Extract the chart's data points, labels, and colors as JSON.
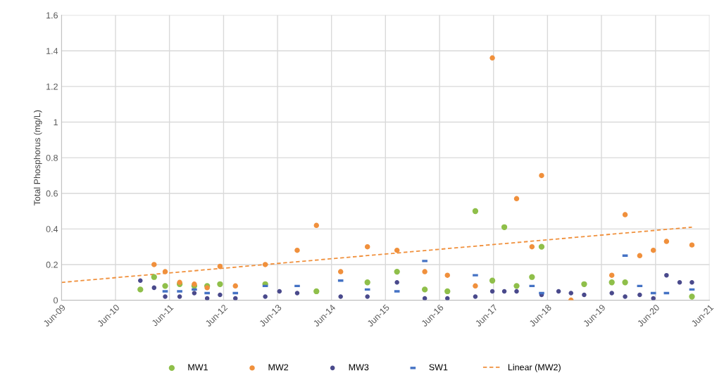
{
  "chart_data": {
    "type": "scatter",
    "ylabel": "Total Phosphorus (mg/L)",
    "xlim": [
      "2009-06-01",
      "2021-06-01"
    ],
    "xticks": [
      {
        "value": "2009-06-01",
        "label": "Jun-09"
      },
      {
        "value": "2010-06-01",
        "label": "Jun-10"
      },
      {
        "value": "2011-06-01",
        "label": "Jun-11"
      },
      {
        "value": "2012-06-01",
        "label": "Jun-12"
      },
      {
        "value": "2013-06-01",
        "label": "Jun-13"
      },
      {
        "value": "2014-06-01",
        "label": "Jun-14"
      },
      {
        "value": "2015-06-01",
        "label": "Jun-15"
      },
      {
        "value": "2016-06-01",
        "label": "Jun-16"
      },
      {
        "value": "2017-06-01",
        "label": "Jun-17"
      },
      {
        "value": "2018-06-01",
        "label": "Jun-18"
      },
      {
        "value": "2019-06-01",
        "label": "Jun-19"
      },
      {
        "value": "2020-06-01",
        "label": "Jun-20"
      },
      {
        "value": "2021-06-01",
        "label": "Jun-21"
      }
    ],
    "ylim": [
      0,
      1.6
    ],
    "yticks": [
      0,
      0.2,
      0.4,
      0.6,
      0.8,
      1,
      1.2,
      1.4,
      1.6
    ],
    "grid": true,
    "legend": "bottom",
    "series": [
      {
        "name": "MW1",
        "type": "scatter",
        "marker": "circle",
        "color": "#8fbf4a",
        "x": [
          "2010-11-16",
          "2011-02-17",
          "2011-05-03",
          "2011-08-09",
          "2011-11-16",
          "2012-02-11",
          "2012-05-08",
          "2013-03-10",
          "2014-02-19",
          "2015-01-30",
          "2015-08-18",
          "2016-02-22",
          "2016-07-24",
          "2017-01-29",
          "2017-05-24",
          "2017-08-13",
          "2017-11-04",
          "2018-02-16",
          "2018-04-22",
          "2019-02-04",
          "2019-08-10",
          "2019-11-08",
          "2021-02-02"
        ],
        "values": [
          0.06,
          0.13,
          0.08,
          0.09,
          0.08,
          0.08,
          0.09,
          0.09,
          0.05,
          0.1,
          0.16,
          0.06,
          0.05,
          0.5,
          0.11,
          0.41,
          0.08,
          0.13,
          0.3,
          0.09,
          0.1,
          0.1,
          0.02
        ]
      },
      {
        "name": "MW2",
        "type": "scatter",
        "marker": "circle",
        "color": "#f0903c",
        "x": [
          "2011-02-17",
          "2011-05-03",
          "2011-08-09",
          "2011-11-16",
          "2012-02-11",
          "2012-05-08",
          "2012-08-20",
          "2013-03-10",
          "2013-10-12",
          "2014-02-19",
          "2014-08-02",
          "2015-01-30",
          "2015-08-18",
          "2016-02-22",
          "2016-07-24",
          "2017-01-29",
          "2017-05-24",
          "2017-11-04",
          "2018-02-16",
          "2018-04-22",
          "2018-11-07",
          "2019-08-10",
          "2019-11-08",
          "2020-02-15",
          "2020-05-17",
          "2020-08-14",
          "2021-02-02"
        ],
        "values": [
          0.2,
          0.16,
          0.1,
          0.09,
          0.07,
          0.19,
          0.08,
          0.2,
          0.28,
          0.42,
          0.16,
          0.3,
          0.28,
          0.16,
          0.14,
          0.08,
          1.36,
          0.57,
          0.3,
          0.7,
          0.0,
          0.14,
          0.48,
          0.25,
          0.28,
          0.33,
          0.31
        ]
      },
      {
        "name": "MW3",
        "type": "scatter",
        "marker": "circle",
        "color": "#4a4a8c",
        "x": [
          "2010-11-16",
          "2011-02-17",
          "2011-05-03",
          "2011-08-09",
          "2011-11-16",
          "2012-02-11",
          "2012-05-08",
          "2012-08-20",
          "2013-03-10",
          "2013-06-14",
          "2013-10-12",
          "2014-08-02",
          "2015-01-30",
          "2015-08-18",
          "2016-02-22",
          "2016-07-24",
          "2017-01-29",
          "2017-05-24",
          "2017-08-13",
          "2017-11-04",
          "2018-04-22",
          "2018-08-15",
          "2018-11-07",
          "2019-02-04",
          "2019-08-10",
          "2019-11-08",
          "2020-02-15",
          "2020-05-17",
          "2020-08-14",
          "2020-11-11",
          "2021-02-02"
        ],
        "values": [
          0.11,
          0.07,
          0.02,
          0.02,
          0.04,
          0.01,
          0.03,
          0.01,
          0.02,
          0.05,
          0.04,
          0.02,
          0.02,
          0.1,
          0.01,
          0.01,
          0.02,
          0.05,
          0.05,
          0.05,
          0.03,
          0.05,
          0.04,
          0.03,
          0.04,
          0.02,
          0.03,
          0.01,
          0.14,
          0.1,
          0.1
        ]
      },
      {
        "name": "SW1",
        "type": "scatter",
        "marker": "square",
        "color": "#4472c4",
        "x": [
          "2011-05-03",
          "2011-08-09",
          "2011-11-16",
          "2012-02-11",
          "2012-08-20",
          "2013-03-10",
          "2013-10-12",
          "2014-08-02",
          "2015-01-30",
          "2015-08-18",
          "2016-02-22",
          "2017-01-29",
          "2018-02-16",
          "2018-04-22",
          "2019-11-08",
          "2020-02-15",
          "2020-05-17",
          "2020-08-14",
          "2021-02-02"
        ],
        "values": [
          0.05,
          0.05,
          0.06,
          0.04,
          0.04,
          0.08,
          0.08,
          0.11,
          0.06,
          0.05,
          0.22,
          0.14,
          0.08,
          0.04,
          0.25,
          0.08,
          0.04,
          0.04,
          0.06
        ]
      },
      {
        "name": "Linear (MW2)",
        "type": "line",
        "marker": "none",
        "line_style": "dashed",
        "color": "#f0903c",
        "x": [
          "2009-06-01",
          "2021-02-02"
        ],
        "values": [
          0.1,
          0.41
        ]
      }
    ]
  }
}
